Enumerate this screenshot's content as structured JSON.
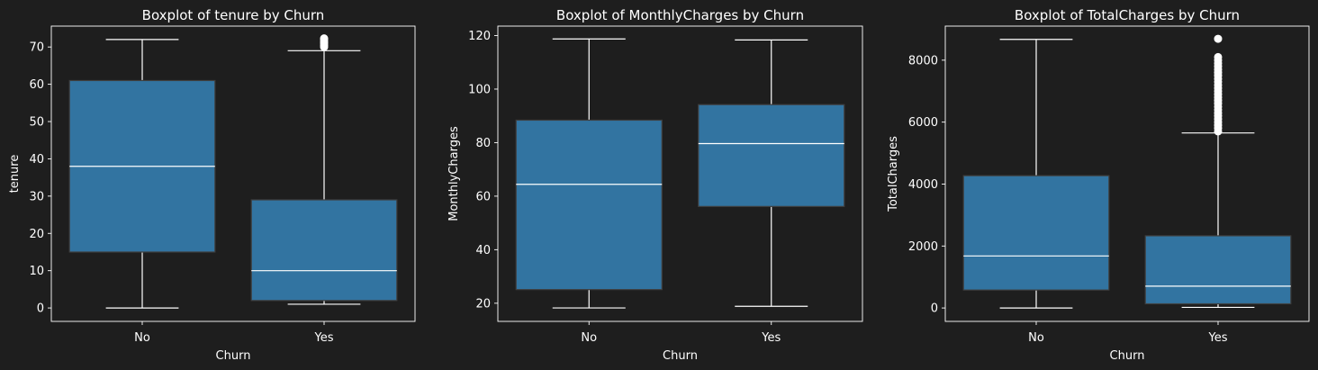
{
  "colors": {
    "background": "#1e1e1e",
    "box_fill": "#3274a1",
    "box_edge": "#3f3f3f",
    "median": "#ffffff",
    "whisker": "#ffffff",
    "flier": "#ffffff",
    "frame": "#ffffff",
    "text": "#ffffff"
  },
  "chart_data": [
    {
      "type": "box",
      "title": "Boxplot of tenure by Churn",
      "xlabel": "Churn",
      "ylabel": "tenure",
      "categories": [
        "No",
        "Yes"
      ],
      "ylim": [
        -3.6,
        75.6
      ],
      "yticks": [
        0,
        10,
        20,
        30,
        40,
        50,
        60,
        70
      ],
      "grid": false,
      "boxes": [
        {
          "category": "No",
          "whislo": 0,
          "q1": 15,
          "median": 38,
          "q3": 61,
          "whishi": 72,
          "fliers": []
        },
        {
          "category": "Yes",
          "whislo": 1,
          "q1": 2,
          "median": 10,
          "q3": 29,
          "whishi": 69,
          "fliers": [
            70,
            70.5,
            71,
            71.5,
            72,
            72.3
          ]
        }
      ]
    },
    {
      "type": "box",
      "title": "Boxplot of MonthlyCharges by Churn",
      "xlabel": "Churn",
      "ylabel": "MonthlyCharges",
      "categories": [
        "No",
        "Yes"
      ],
      "ylim": [
        13.22,
        123.53
      ],
      "yticks": [
        20,
        40,
        60,
        80,
        100,
        120
      ],
      "grid": false,
      "boxes": [
        {
          "category": "No",
          "whislo": 18.25,
          "q1": 25.1,
          "median": 64.43,
          "q3": 88.4,
          "whishi": 118.75,
          "fliers": []
        },
        {
          "category": "Yes",
          "whislo": 18.85,
          "q1": 56.15,
          "median": 79.65,
          "q3": 94.2,
          "whishi": 118.35,
          "fliers": []
        }
      ]
    },
    {
      "type": "box",
      "title": "Boxplot of TotalCharges by Churn",
      "xlabel": "Churn",
      "ylabel": "TotalCharges",
      "categories": [
        "No",
        "Yes"
      ],
      "ylim": [
        -433,
        9100
      ],
      "yticks": [
        0,
        2000,
        4000,
        6000,
        8000
      ],
      "grid": false,
      "boxes": [
        {
          "category": "No",
          "whislo": 0,
          "q1": 580,
          "median": 1680,
          "q3": 4270,
          "whishi": 8672,
          "fliers": []
        },
        {
          "category": "Yes",
          "whislo": 19,
          "q1": 134,
          "median": 704,
          "q3": 2330,
          "whishi": 5650,
          "fliers": [
            5700,
            5800,
            5900,
            6000,
            6100,
            6200,
            6300,
            6400,
            6500,
            6600,
            6700,
            6800,
            6900,
            7000,
            7100,
            7200,
            7300,
            7400,
            7500,
            7600,
            7700,
            7800,
            7900,
            8000,
            8100,
            8690
          ]
        }
      ]
    }
  ]
}
